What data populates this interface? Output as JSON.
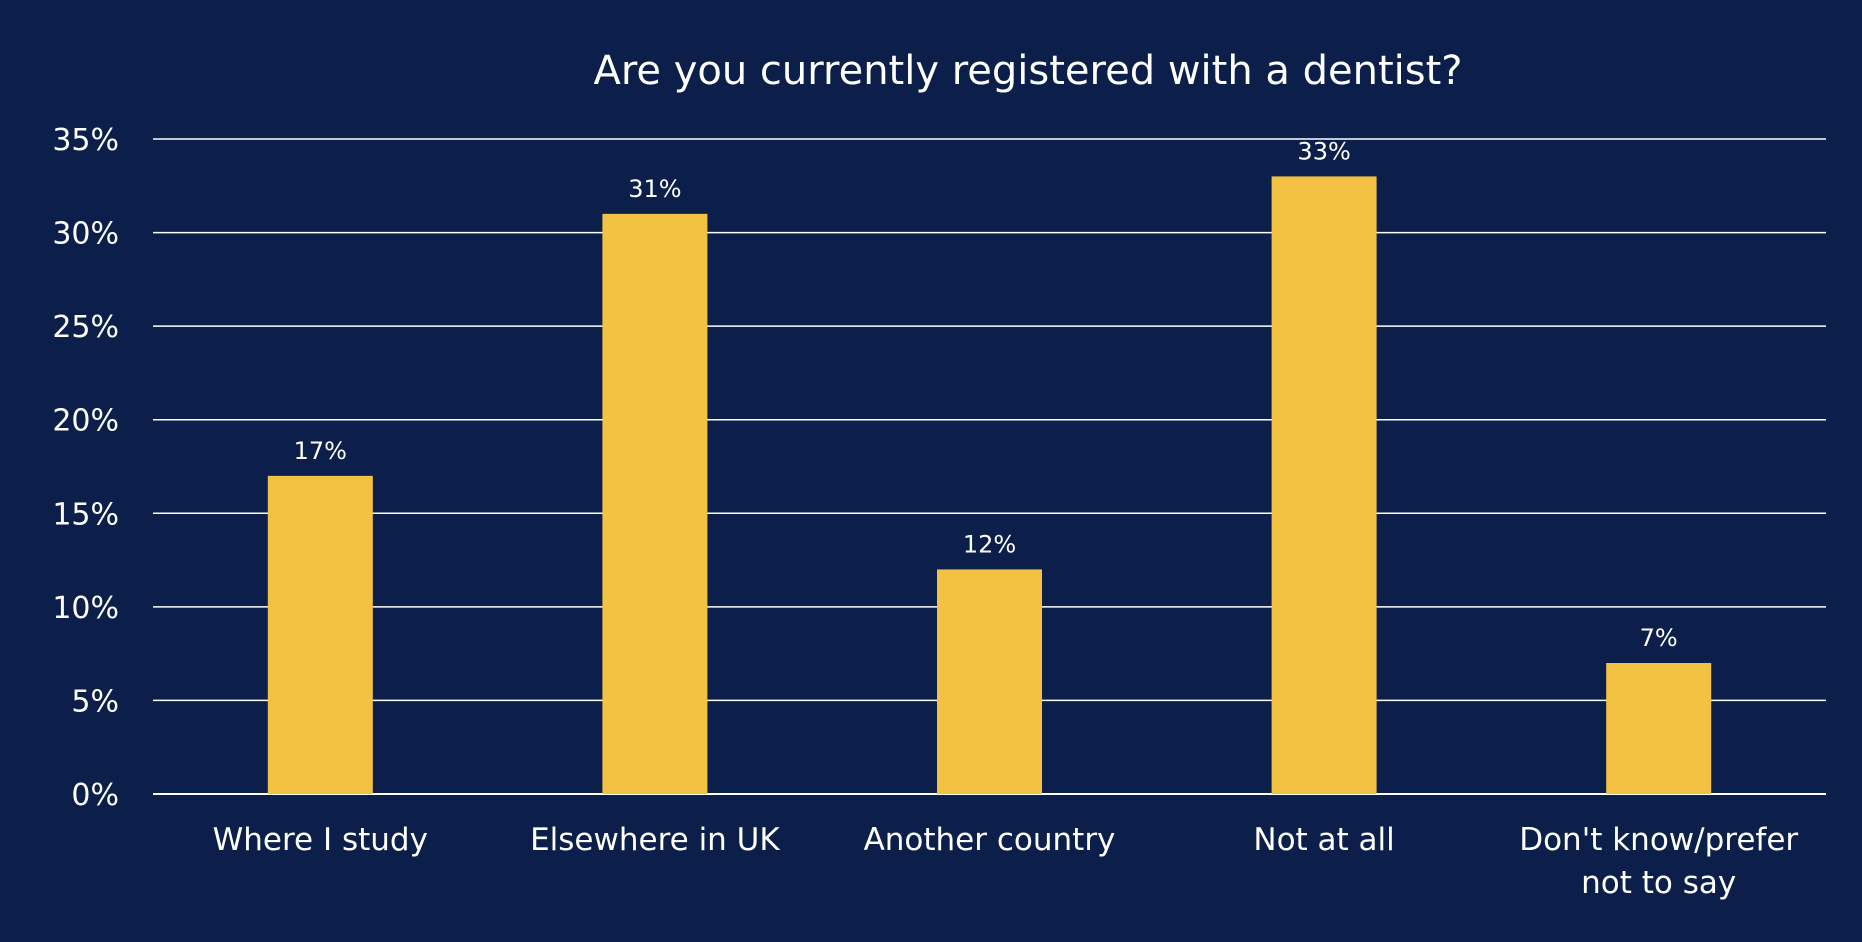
{
  "chart_data": {
    "type": "bar",
    "title": "Are you currently registered with a dentist?",
    "categories": [
      [
        "Where I study"
      ],
      [
        "Elsewhere in UK"
      ],
      [
        "Another country"
      ],
      [
        "Not at all"
      ],
      [
        "Don't know/prefer",
        "not to say"
      ]
    ],
    "values": [
      17,
      31,
      12,
      33,
      7
    ],
    "value_labels": [
      "17%",
      "31%",
      "12%",
      "33%",
      "7%"
    ],
    "ylim": [
      0,
      35
    ],
    "y_ticks": [
      0,
      5,
      10,
      15,
      20,
      25,
      30,
      35
    ],
    "y_tick_labels": [
      "0%",
      "5%",
      "10%",
      "15%",
      "20%",
      "25%",
      "30%",
      "35%"
    ],
    "grid": true,
    "legend": "none",
    "colors": {
      "background": "#0b1f4a",
      "bar": "#f4c243",
      "text": "#ffffff",
      "grid": "#ffffff"
    }
  }
}
